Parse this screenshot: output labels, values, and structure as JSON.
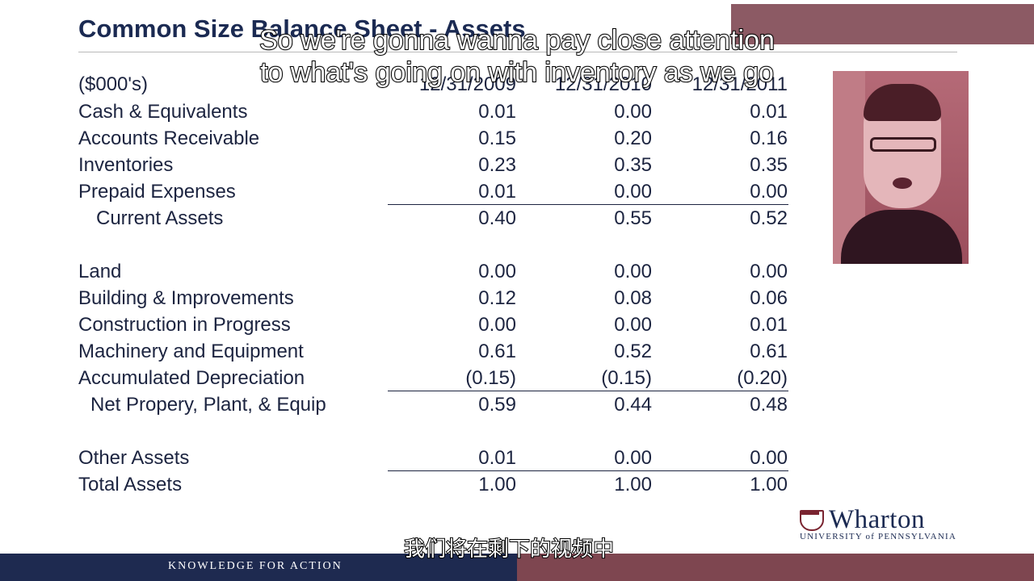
{
  "slide": {
    "title": "Common Size Balance Sheet - Assets",
    "units": "($000's)",
    "columns": [
      "12/31/2009",
      "12/31/2010",
      "12/31/2011"
    ]
  },
  "rows": [
    {
      "label": "Cash & Equivalents",
      "values": [
        "0.01",
        "0.00",
        "0.01"
      ]
    },
    {
      "label": "Accounts Receivable",
      "values": [
        "0.15",
        "0.20",
        "0.16"
      ]
    },
    {
      "label": "Inventories",
      "values": [
        "0.23",
        "0.35",
        "0.35"
      ]
    },
    {
      "label": "Prepaid Expenses",
      "values": [
        "0.01",
        "0.00",
        "0.00"
      ]
    },
    {
      "label": "Current Assets",
      "values": [
        "0.40",
        "0.55",
        "0.52"
      ]
    },
    {
      "label": "Land",
      "values": [
        "0.00",
        "0.00",
        "0.00"
      ]
    },
    {
      "label": "Building & Improvements",
      "values": [
        "0.12",
        "0.08",
        "0.06"
      ]
    },
    {
      "label": "Construction in Progress",
      "values": [
        "0.00",
        "0.00",
        "0.01"
      ]
    },
    {
      "label": "Machinery and Equipment",
      "values": [
        "0.61",
        "0.52",
        "0.61"
      ]
    },
    {
      "label": "Accumulated Depreciation",
      "values": [
        "(0.15)",
        "(0.15)",
        "(0.20)"
      ]
    },
    {
      "label": "Net Propery, Plant, & Equip",
      "values": [
        "0.59",
        "0.44",
        "0.48"
      ]
    },
    {
      "label": "Other Assets",
      "values": [
        "0.01",
        "0.00",
        "0.00"
      ]
    },
    {
      "label": "Total Assets",
      "values": [
        "1.00",
        "1.00",
        "1.00"
      ]
    }
  ],
  "captions": {
    "english_line1": "So we're gonna wanna pay close attention",
    "english_line2": "to what's going on with inventory as we go",
    "chinese": "我们将在剩下的视频中"
  },
  "branding": {
    "logo_name": "Wharton",
    "logo_sub": "UNIVERSITY of PENNSYLVANIA",
    "footer": "KNOWLEDGE FOR ACTION"
  },
  "colors": {
    "navy": "#1e2a50",
    "maroon": "#7e4650",
    "text": "#1c2440"
  },
  "icons": {
    "logo_mark": "penn-shield-icon"
  }
}
